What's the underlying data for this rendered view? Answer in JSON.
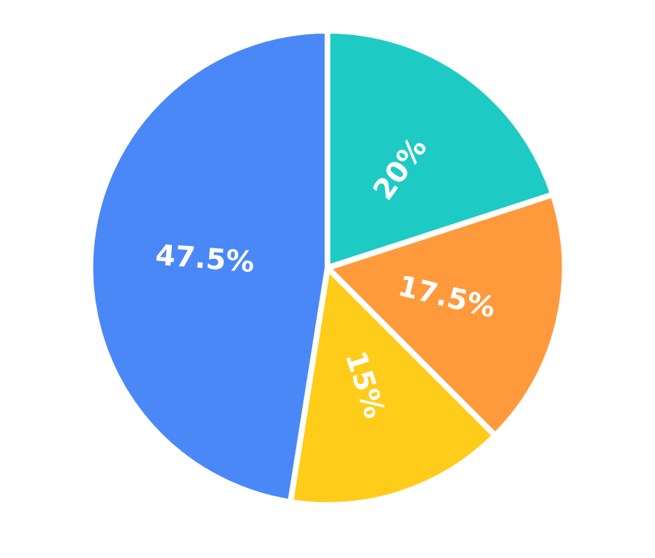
{
  "chart_data": {
    "type": "pie",
    "categories": [
      null,
      null,
      null,
      null
    ],
    "values": [
      20,
      17.5,
      15,
      47.5
    ],
    "colors": [
      "#1ecbc4",
      "#ff9a3c",
      "#ffcc1a",
      "#4a88f7"
    ],
    "value_labels": [
      "20%",
      "17.5%",
      "15%",
      "47.5%"
    ]
  }
}
